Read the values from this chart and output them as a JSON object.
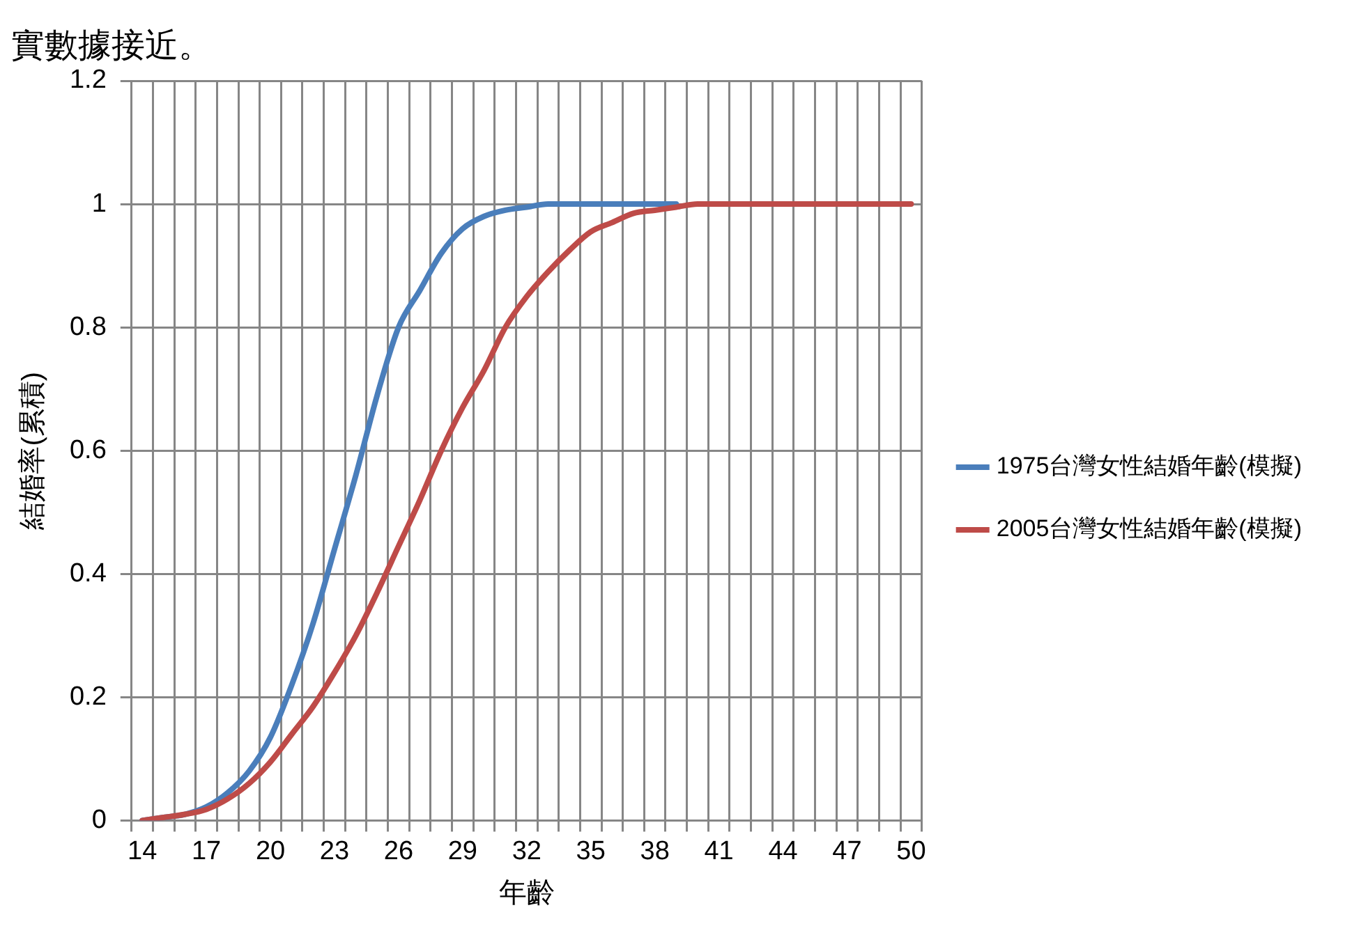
{
  "chart_data": {
    "type": "line",
    "annotations": [
      "實數據接近。"
    ],
    "xlabel": "年齡",
    "ylabel": "結婚率(累積)",
    "categories": [
      "14",
      null,
      null,
      "17",
      null,
      null,
      "20",
      null,
      null,
      "23",
      null,
      null,
      "26",
      null,
      null,
      "29",
      null,
      null,
      "32",
      null,
      null,
      "35",
      null,
      null,
      "38",
      null,
      null,
      "41",
      null,
      null,
      "44",
      null,
      null,
      "47",
      null,
      null,
      "50"
    ],
    "series": [
      {
        "name": "1975台灣女性結婚年齡(模擬)",
        "color": "#4a7ebb",
        "values": [
          0,
          0.005,
          0.01,
          0.022,
          0.045,
          0.08,
          0.135,
          0.22,
          0.32,
          0.44,
          0.56,
          0.69,
          0.8,
          0.86,
          0.92,
          0.96,
          0.98,
          0.99,
          0.995,
          1,
          1,
          1,
          1,
          1,
          1,
          1,
          null,
          null,
          null,
          null,
          null,
          null,
          null,
          null,
          null,
          null,
          null
        ]
      },
      {
        "name": "2005台灣女性結婚年齡(模擬)",
        "color": "#be4b48",
        "values": [
          0,
          0.005,
          0.01,
          0.018,
          0.035,
          0.06,
          0.095,
          0.14,
          0.185,
          0.24,
          0.3,
          0.37,
          0.445,
          0.52,
          0.6,
          0.67,
          0.73,
          0.8,
          0.85,
          0.89,
          0.925,
          0.955,
          0.97,
          0.985,
          0.99,
          0.995,
          1,
          1,
          1,
          1,
          1,
          1,
          1,
          1,
          1,
          1,
          1
        ]
      }
    ],
    "ylim": [
      0,
      1.2
    ],
    "yticks": [
      0,
      0.2,
      0.4,
      0.6,
      0.8,
      1,
      1.2
    ],
    "grid": true,
    "legend": "right",
    "marker": "none",
    "line_style": "solid"
  }
}
